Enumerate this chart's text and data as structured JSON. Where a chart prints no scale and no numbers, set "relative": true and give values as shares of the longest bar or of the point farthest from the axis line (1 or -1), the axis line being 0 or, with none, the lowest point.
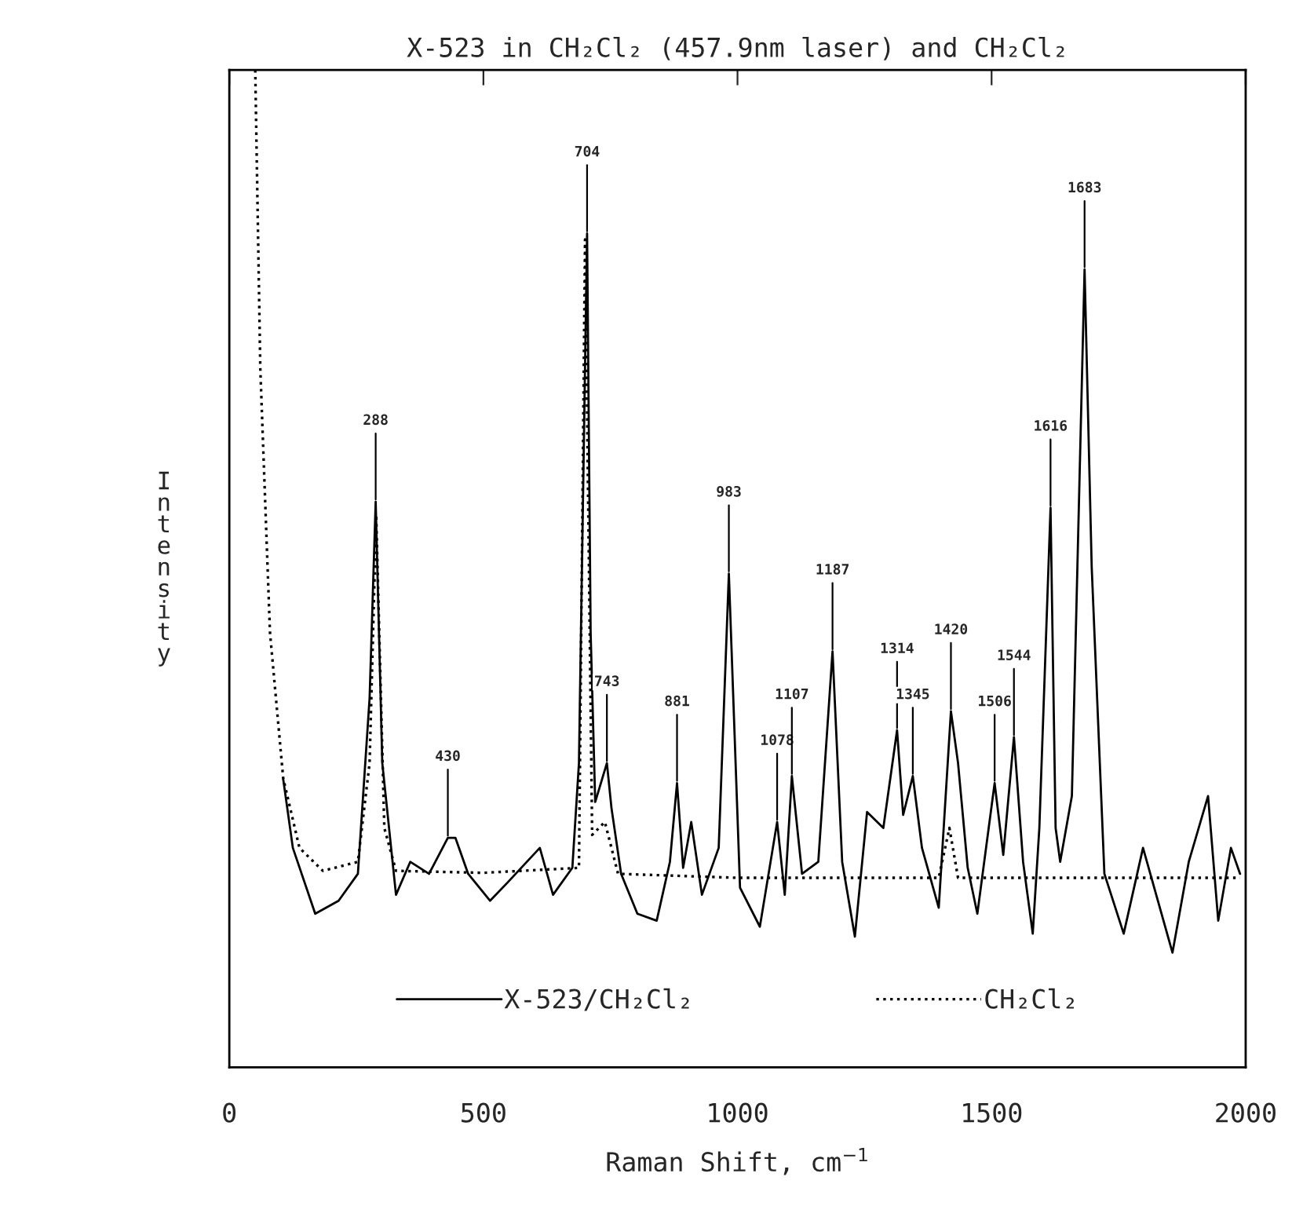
{
  "chart_data": {
    "type": "line",
    "title": "X-523 in CH₂Cl₂ (457.9nm laser) and CH₂Cl₂",
    "xlabel": "Raman Shift, cm$^{−1}$",
    "ylabel": "Intensity",
    "relative": true,
    "xlim": [
      0,
      2000
    ],
    "xticks": [
      0,
      500,
      1000,
      1500,
      2000
    ],
    "tick_labels": "x",
    "grid": false,
    "legend": "bottom",
    "marker": "none",
    "series": [
      {
        "name": "X-523/CH₂Cl₂",
        "color": "#000000",
        "line_style": "solid",
        "x": [
          106,
          125,
          169,
          215,
          253,
          276,
          288,
          301,
          328,
          356,
          393,
          430,
          445,
          470,
          513,
          547,
          611,
          637,
          675,
          688,
          704,
          711,
          720,
          743,
          752,
          771,
          803,
          841,
          867,
          881,
          893,
          909,
          930,
          963,
          983,
          1005,
          1044,
          1078,
          1093,
          1107,
          1127,
          1159,
          1187,
          1206,
          1231,
          1255,
          1287,
          1314,
          1326,
          1345,
          1363,
          1396,
          1420,
          1434,
          1453,
          1472,
          1506,
          1523,
          1544,
          1562,
          1581,
          1594,
          1616,
          1626,
          1635,
          1658,
          1683,
          1697,
          1722,
          1760,
          1798,
          1856,
          1888,
          1926,
          1946,
          1971,
          1989
        ],
        "values": [
          0.289,
          0.22,
          0.154,
          0.167,
          0.194,
          0.37,
          0.567,
          0.305,
          0.173,
          0.206,
          0.194,
          0.23,
          0.23,
          0.194,
          0.167,
          0.185,
          0.22,
          0.173,
          0.2,
          0.305,
          0.836,
          0.436,
          0.266,
          0.305,
          0.26,
          0.194,
          0.154,
          0.147,
          0.206,
          0.285,
          0.2,
          0.246,
          0.173,
          0.22,
          0.495,
          0.18,
          0.141,
          0.246,
          0.173,
          0.292,
          0.194,
          0.206,
          0.417,
          0.206,
          0.131,
          0.256,
          0.24,
          0.338,
          0.253,
          0.292,
          0.22,
          0.16,
          0.357,
          0.305,
          0.2,
          0.154,
          0.285,
          0.213,
          0.331,
          0.206,
          0.134,
          0.24,
          0.561,
          0.24,
          0.206,
          0.272,
          0.8,
          0.502,
          0.194,
          0.134,
          0.22,
          0.115,
          0.206,
          0.272,
          0.147,
          0.22,
          0.194
        ]
      },
      {
        "name": "CH₂Cl₂",
        "color": "#000000",
        "line_style": "dotted",
        "x": [
          51,
          61,
          80,
          106,
          138,
          184,
          253,
          276,
          289,
          305,
          328,
          500,
          688,
          700,
          714,
          739,
          765,
          1000,
          1396,
          1417,
          1434,
          1700,
          1989
        ],
        "values": [
          1.0,
          0.7,
          0.436,
          0.29,
          0.22,
          0.197,
          0.206,
          0.305,
          0.554,
          0.24,
          0.197,
          0.195,
          0.2,
          0.83,
          0.233,
          0.246,
          0.194,
          0.19,
          0.19,
          0.24,
          0.19,
          0.19,
          0.19
        ]
      }
    ],
    "annotations": [
      {
        "text": "288",
        "x": 288,
        "y": 0.567
      },
      {
        "text": "430",
        "x": 430,
        "y": 0.23
      },
      {
        "text": "704",
        "x": 704,
        "y": 0.836
      },
      {
        "text": "743",
        "x": 743,
        "y": 0.305
      },
      {
        "text": "881",
        "x": 881,
        "y": 0.285
      },
      {
        "text": "983",
        "x": 983,
        "y": 0.495
      },
      {
        "text": "1078",
        "x": 1078,
        "y": 0.246
      },
      {
        "text": "1107",
        "x": 1107,
        "y": 0.292
      },
      {
        "text": "1187",
        "x": 1187,
        "y": 0.417
      },
      {
        "text": "1314",
        "x": 1314,
        "y": 0.338
      },
      {
        "text": "1345",
        "x": 1345,
        "y": 0.292
      },
      {
        "text": "1420",
        "x": 1420,
        "y": 0.357
      },
      {
        "text": "1506",
        "x": 1506,
        "y": 0.285
      },
      {
        "text": "1544",
        "x": 1544,
        "y": 0.331
      },
      {
        "text": "1616",
        "x": 1616,
        "y": 0.561
      },
      {
        "text": "1683",
        "x": 1683,
        "y": 0.8
      }
    ]
  }
}
